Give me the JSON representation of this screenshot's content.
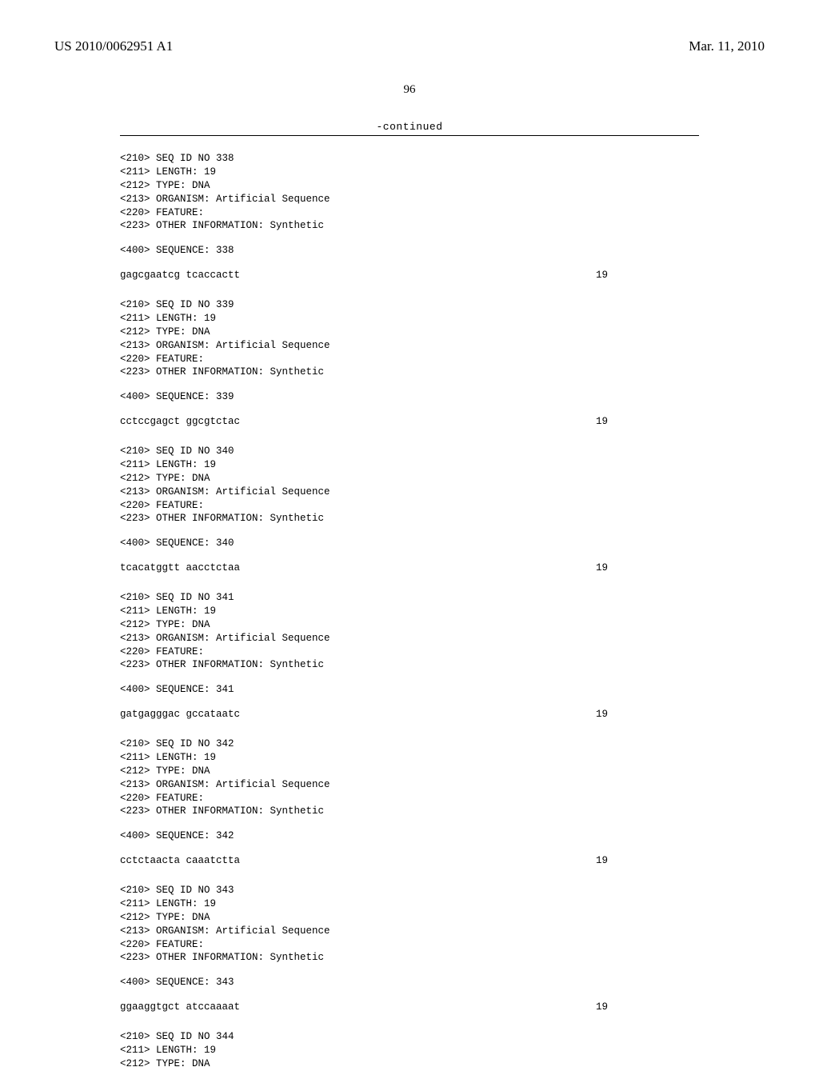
{
  "header": {
    "pub_number": "US 2010/0062951 A1",
    "pub_date": "Mar. 11, 2010",
    "page_number": "96",
    "continued_label": "-continued"
  },
  "entries": [
    {
      "seq_id": "<210> SEQ ID NO 338",
      "length": "<211> LENGTH: 19",
      "type": "<212> TYPE: DNA",
      "organism": "<213> ORGANISM: Artificial Sequence",
      "feature": "<220> FEATURE:",
      "other": "<223> OTHER INFORMATION: Synthetic",
      "seq_label": "<400> SEQUENCE: 338",
      "seq": "gagcgaatcg tcaccactt",
      "seq_len": "19"
    },
    {
      "seq_id": "<210> SEQ ID NO 339",
      "length": "<211> LENGTH: 19",
      "type": "<212> TYPE: DNA",
      "organism": "<213> ORGANISM: Artificial Sequence",
      "feature": "<220> FEATURE:",
      "other": "<223> OTHER INFORMATION: Synthetic",
      "seq_label": "<400> SEQUENCE: 339",
      "seq": "cctccgagct ggcgtctac",
      "seq_len": "19"
    },
    {
      "seq_id": "<210> SEQ ID NO 340",
      "length": "<211> LENGTH: 19",
      "type": "<212> TYPE: DNA",
      "organism": "<213> ORGANISM: Artificial Sequence",
      "feature": "<220> FEATURE:",
      "other": "<223> OTHER INFORMATION: Synthetic",
      "seq_label": "<400> SEQUENCE: 340",
      "seq": "tcacatggtt aacctctaa",
      "seq_len": "19"
    },
    {
      "seq_id": "<210> SEQ ID NO 341",
      "length": "<211> LENGTH: 19",
      "type": "<212> TYPE: DNA",
      "organism": "<213> ORGANISM: Artificial Sequence",
      "feature": "<220> FEATURE:",
      "other": "<223> OTHER INFORMATION: Synthetic",
      "seq_label": "<400> SEQUENCE: 341",
      "seq": "gatgagggac gccataatc",
      "seq_len": "19"
    },
    {
      "seq_id": "<210> SEQ ID NO 342",
      "length": "<211> LENGTH: 19",
      "type": "<212> TYPE: DNA",
      "organism": "<213> ORGANISM: Artificial Sequence",
      "feature": "<220> FEATURE:",
      "other": "<223> OTHER INFORMATION: Synthetic",
      "seq_label": "<400> SEQUENCE: 342",
      "seq": "cctctaacta caaatctta",
      "seq_len": "19"
    },
    {
      "seq_id": "<210> SEQ ID NO 343",
      "length": "<211> LENGTH: 19",
      "type": "<212> TYPE: DNA",
      "organism": "<213> ORGANISM: Artificial Sequence",
      "feature": "<220> FEATURE:",
      "other": "<223> OTHER INFORMATION: Synthetic",
      "seq_label": "<400> SEQUENCE: 343",
      "seq": "ggaaggtgct atccaaaat",
      "seq_len": "19"
    }
  ],
  "tail": {
    "seq_id": "<210> SEQ ID NO 344",
    "length": "<211> LENGTH: 19",
    "type": "<212> TYPE: DNA"
  }
}
